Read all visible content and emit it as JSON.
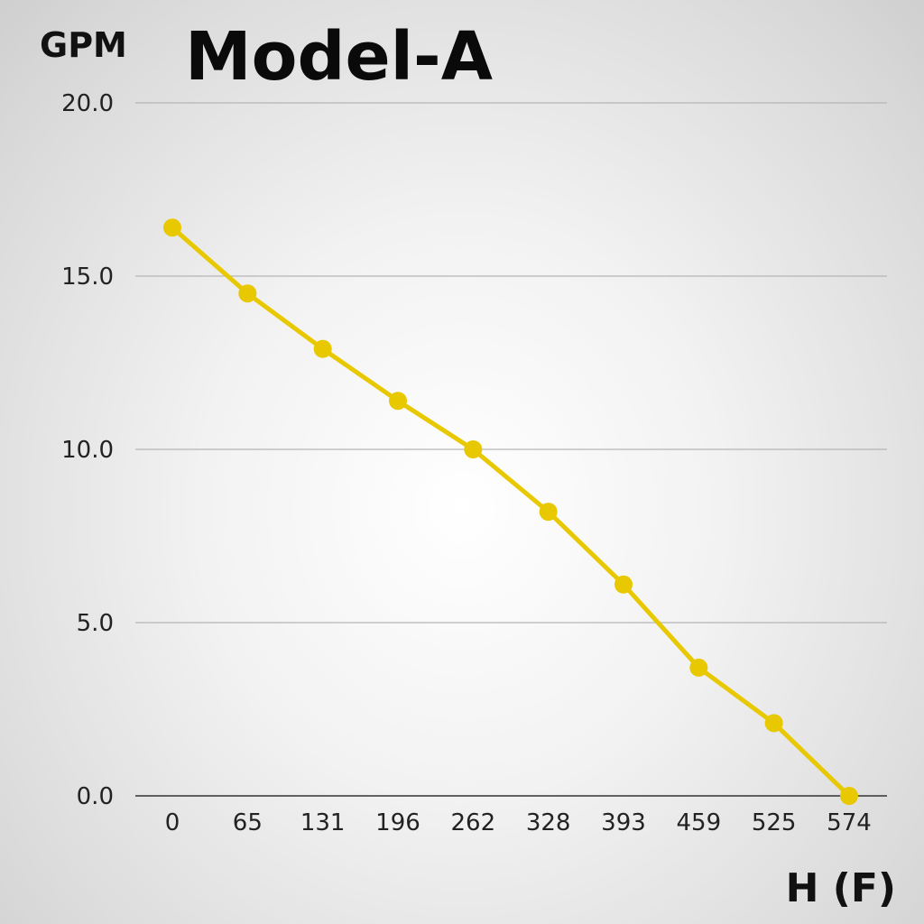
{
  "chart_data": {
    "type": "line",
    "title": "Model-A",
    "xlabel": "H (F)",
    "ylabel": "GPM",
    "categories": [
      "0",
      "65",
      "131",
      "196",
      "262",
      "328",
      "393",
      "459",
      "525",
      "574"
    ],
    "series": [
      {
        "values": [
          16.4,
          14.5,
          12.9,
          11.4,
          10.0,
          8.2,
          6.1,
          3.7,
          2.1,
          0.0
        ],
        "color": "#e8c800"
      }
    ],
    "yticks": [
      "20.0",
      "15.0",
      "10.0",
      "5.0",
      "0.0"
    ],
    "ylim": [
      0,
      20
    ],
    "grid": true,
    "legend": "none"
  }
}
